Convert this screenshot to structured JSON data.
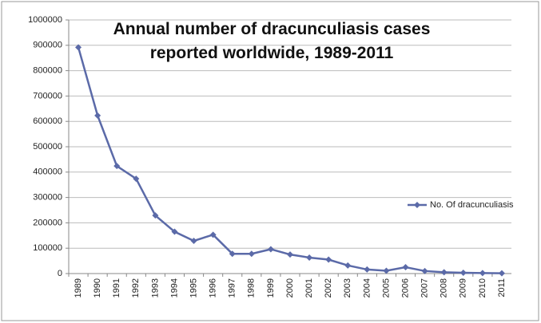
{
  "chart_data": {
    "type": "line",
    "title": "Annual number of dracunculiasis cases reported worldwide, 1989-2011",
    "categories": [
      "1989",
      "1990",
      "1991",
      "1992",
      "1993",
      "1994",
      "1995",
      "1996",
      "1997",
      "1998",
      "1999",
      "2000",
      "2001",
      "2002",
      "2003",
      "2004",
      "2005",
      "2006",
      "2007",
      "2008",
      "2009",
      "2010",
      "2011"
    ],
    "series": [
      {
        "name": "No. Of dracunculiasis",
        "color": "#5b6aa8",
        "values": [
          892000,
          623000,
          424000,
          374000,
          229000,
          165000,
          129000,
          153000,
          78000,
          78000,
          96000,
          75000,
          63000,
          55000,
          32000,
          16000,
          11000,
          25000,
          10000,
          5000,
          3000,
          1800,
          1000
        ]
      }
    ],
    "ylim": [
      0,
      1000000
    ],
    "yticks": [
      0,
      100000,
      200000,
      300000,
      400000,
      500000,
      600000,
      700000,
      800000,
      900000,
      1000000
    ],
    "grid": true,
    "legend": "right"
  }
}
